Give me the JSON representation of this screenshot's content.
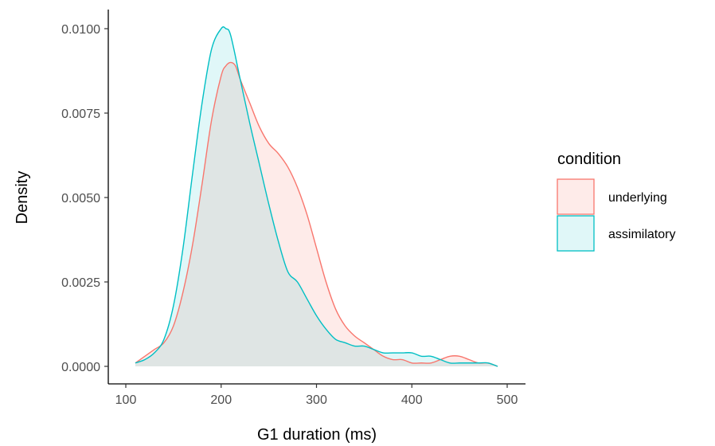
{
  "chart_data": {
    "type": "area",
    "xlabel": "G1 duration (ms)",
    "ylabel": "Density",
    "xlim": [
      100,
      500
    ],
    "ylim": [
      0,
      0.0101
    ],
    "x_ticks": [
      100,
      200,
      300,
      400,
      500
    ],
    "x_tick_labels": [
      "100",
      "200",
      "300",
      "400",
      "500"
    ],
    "y_ticks": [
      0,
      0.0025,
      0.005,
      0.0075,
      0.01
    ],
    "y_tick_labels": [
      "0.0000",
      "0.0025",
      "0.0050",
      "0.0075",
      "0.0100"
    ],
    "grid": false,
    "legend": {
      "title": "condition",
      "position": "right",
      "entries": [
        "underlying",
        "assimilatory"
      ]
    },
    "series": [
      {
        "name": "underlying",
        "color": "#F8766D",
        "fill": "rgba(248,118,109,0.15)",
        "x": [
          110,
          120,
          130,
          140,
          150,
          160,
          170,
          180,
          190,
          200,
          205,
          210,
          215,
          220,
          230,
          240,
          250,
          260,
          270,
          280,
          290,
          300,
          310,
          320,
          330,
          340,
          350,
          360,
          370,
          380,
          390,
          400,
          410,
          420,
          430,
          440,
          450,
          460,
          470,
          480,
          490
        ],
        "y": [
          0.0001,
          0.0003,
          0.0005,
          0.0007,
          0.0012,
          0.0022,
          0.0036,
          0.0054,
          0.0073,
          0.0086,
          0.0089,
          0.009,
          0.0089,
          0.0085,
          0.0078,
          0.0071,
          0.0066,
          0.0063,
          0.0059,
          0.0053,
          0.0045,
          0.0035,
          0.0025,
          0.0017,
          0.0012,
          0.0009,
          0.0007,
          0.0005,
          0.0003,
          0.0002,
          0.0002,
          0.0001,
          0.0001,
          0.0001,
          0.0002,
          0.0003,
          0.0003,
          0.0002,
          0.0001,
          0.0001,
          0.0
        ]
      },
      {
        "name": "assimilatory",
        "color": "#00BFC4",
        "fill": "rgba(0,191,196,0.12)",
        "x": [
          110,
          120,
          130,
          140,
          150,
          160,
          170,
          180,
          190,
          200,
          205,
          210,
          220,
          230,
          240,
          250,
          260,
          270,
          280,
          290,
          300,
          310,
          320,
          330,
          340,
          350,
          360,
          370,
          380,
          390,
          400,
          410,
          420,
          430,
          440,
          450,
          460,
          470,
          480,
          490
        ],
        "y": [
          0.0001,
          0.0002,
          0.0004,
          0.0008,
          0.0018,
          0.0035,
          0.0057,
          0.0078,
          0.0094,
          0.01,
          0.01,
          0.0098,
          0.0085,
          0.0072,
          0.006,
          0.0048,
          0.0037,
          0.0028,
          0.0025,
          0.002,
          0.0015,
          0.0011,
          0.0008,
          0.0007,
          0.0006,
          0.0006,
          0.0005,
          0.0004,
          0.0004,
          0.0004,
          0.0004,
          0.0003,
          0.0003,
          0.0002,
          0.0001,
          0.0001,
          0.0001,
          0.0001,
          0.0001,
          0.0
        ]
      }
    ]
  }
}
